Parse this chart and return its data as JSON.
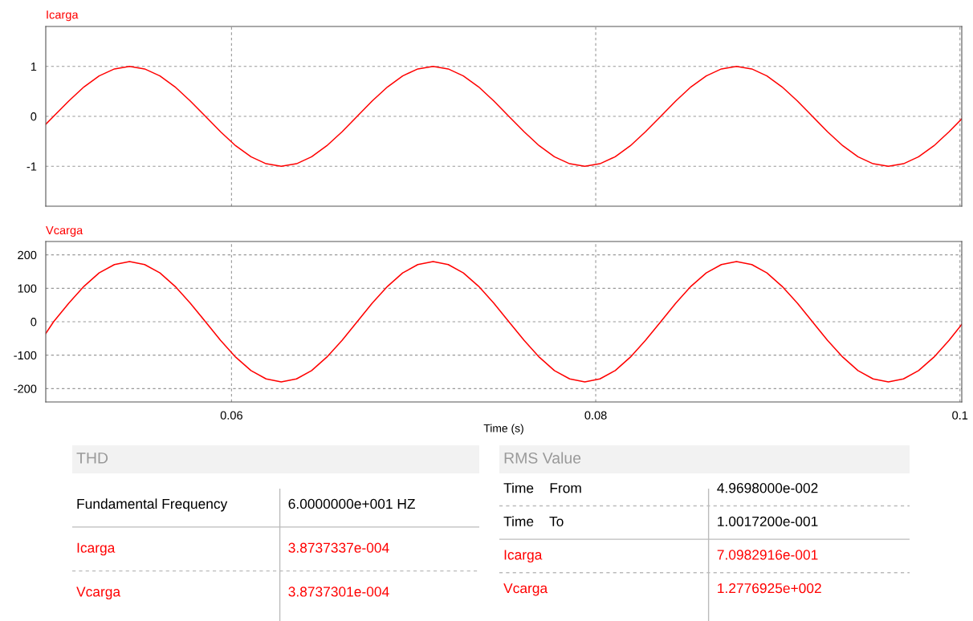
{
  "chart_data": [
    {
      "type": "line",
      "xlim": [
        0.0498,
        0.1001
      ],
      "xticks": [
        0.06,
        0.08,
        0.1
      ],
      "ylim": [
        -1.8,
        1.8
      ],
      "yticks": [
        -1,
        0,
        1
      ],
      "grid": true,
      "tick_labels": "y",
      "line_style": "solid",
      "marker": "none",
      "x": [
        0.0498,
        0.05023,
        0.05107,
        0.0519,
        0.05273,
        0.05357,
        0.0544,
        0.05523,
        0.05607,
        0.0569,
        0.05773,
        0.05857,
        0.0594,
        0.06023,
        0.06107,
        0.0619,
        0.06273,
        0.06357,
        0.0644,
        0.06523,
        0.06607,
        0.0669,
        0.06773,
        0.06857,
        0.0694,
        0.07023,
        0.07107,
        0.0719,
        0.07273,
        0.07357,
        0.0744,
        0.07523,
        0.07607,
        0.0769,
        0.07773,
        0.07857,
        0.0794,
        0.08023,
        0.08107,
        0.0819,
        0.08273,
        0.08357,
        0.0844,
        0.08523,
        0.08607,
        0.0869,
        0.08773,
        0.08857,
        0.0894,
        0.09023,
        0.09107,
        0.0919,
        0.09273,
        0.09357,
        0.0944,
        0.09523,
        0.09607,
        0.0969,
        0.09773,
        0.09857,
        0.0994,
        0.1001
      ],
      "series": [
        {
          "name": "Icarga",
          "color": "#ff0000",
          "values": [
            -0.16,
            0,
            0.31,
            0.59,
            0.81,
            0.95,
            1,
            0.95,
            0.81,
            0.59,
            0.31,
            0,
            -0.31,
            -0.59,
            -0.81,
            -0.95,
            -1,
            -0.95,
            -0.81,
            -0.59,
            -0.31,
            0,
            0.31,
            0.59,
            0.81,
            0.95,
            1,
            0.95,
            0.81,
            0.59,
            0.31,
            0,
            -0.31,
            -0.59,
            -0.81,
            -0.95,
            -1,
            -0.95,
            -0.81,
            -0.59,
            -0.31,
            0,
            0.31,
            0.59,
            0.81,
            0.95,
            1,
            0.95,
            0.81,
            0.59,
            0.31,
            0,
            -0.31,
            -0.59,
            -0.81,
            -0.95,
            -1,
            -0.95,
            -0.81,
            -0.59,
            -0.31,
            -0.05
          ]
        }
      ]
    },
    {
      "type": "line",
      "xlabel": "Time (s)",
      "xlim": [
        0.0498,
        0.1001
      ],
      "xticks": [
        0.06,
        0.08,
        0.1
      ],
      "ylim": [
        -240,
        240
      ],
      "yticks": [
        -200,
        -100,
        0,
        100,
        200
      ],
      "grid": true,
      "line_style": "solid",
      "marker": "none",
      "x": [
        0.0498,
        0.05023,
        0.05107,
        0.0519,
        0.05273,
        0.05357,
        0.0544,
        0.05523,
        0.05607,
        0.0569,
        0.05773,
        0.05857,
        0.0594,
        0.06023,
        0.06107,
        0.0619,
        0.06273,
        0.06357,
        0.0644,
        0.06523,
        0.06607,
        0.0669,
        0.06773,
        0.06857,
        0.0694,
        0.07023,
        0.07107,
        0.0719,
        0.07273,
        0.07357,
        0.0744,
        0.07523,
        0.07607,
        0.0769,
        0.07773,
        0.07857,
        0.0794,
        0.08023,
        0.08107,
        0.0819,
        0.08273,
        0.08357,
        0.0844,
        0.08523,
        0.08607,
        0.0869,
        0.08773,
        0.08857,
        0.0894,
        0.09023,
        0.09107,
        0.0919,
        0.09273,
        0.09357,
        0.0944,
        0.09523,
        0.09607,
        0.0969,
        0.09773,
        0.09857,
        0.0994,
        0.1001
      ],
      "series": [
        {
          "name": "Vcarga",
          "color": "#ff0000",
          "values": [
            -35,
            0,
            56,
            106,
            146,
            171,
            180,
            171,
            146,
            106,
            56,
            0,
            -56,
            -106,
            -146,
            -171,
            -180,
            -171,
            -146,
            -106,
            -56,
            0,
            56,
            106,
            146,
            171,
            180,
            171,
            146,
            106,
            56,
            0,
            -56,
            -106,
            -146,
            -171,
            -180,
            -171,
            -146,
            -106,
            -56,
            0,
            56,
            106,
            146,
            171,
            180,
            171,
            146,
            106,
            56,
            0,
            -56,
            -106,
            -146,
            -171,
            -180,
            -171,
            -146,
            -106,
            -56,
            -8
          ]
        }
      ]
    },
    {
      "type": "other",
      "title": "THD",
      "annotations": [
        "Fundamental Frequency",
        "6.0000000e+001 HZ",
        "Icarga",
        "3.8737337e-004",
        "Vcarga",
        "3.8737301e-004"
      ],
      "colors": [
        "#000000",
        "#000000",
        "#ff0000",
        "#ff0000",
        "#ff0000",
        "#ff0000"
      ]
    },
    {
      "type": "other",
      "title": "RMS Value",
      "annotations": [
        "Time    From",
        "4.9698000e-002",
        "Time    To",
        "1.0017200e-001",
        "Icarga",
        "7.0982916e-001",
        "Vcarga",
        "1.2776925e+002"
      ],
      "colors": [
        "#000000",
        "#000000",
        "#000000",
        "#000000",
        "#ff0000",
        "#ff0000",
        "#ff0000",
        "#ff0000"
      ]
    }
  ]
}
